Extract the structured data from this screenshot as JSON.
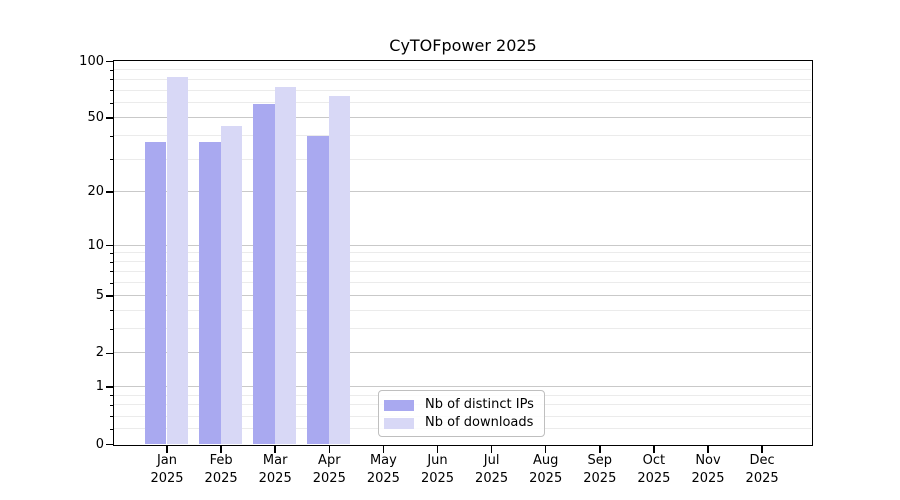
{
  "chart_data": {
    "type": "bar",
    "title": "CyTOFpower 2025",
    "x": {
      "months": [
        "Jan",
        "Feb",
        "Mar",
        "Apr",
        "May",
        "Jun",
        "Jul",
        "Aug",
        "Sep",
        "Oct",
        "Nov",
        "Dec"
      ],
      "year": "2025"
    },
    "categories": [
      "Jan 2025",
      "Feb 2025",
      "Mar 2025",
      "Apr 2025",
      "May 2025",
      "Jun 2025",
      "Jul 2025",
      "Aug 2025",
      "Sep 2025",
      "Oct 2025",
      "Nov 2025",
      "Dec 2025"
    ],
    "series": [
      {
        "name": "Nb of distinct IPs",
        "color": "#a9a9f0",
        "values": [
          37,
          37,
          59,
          40,
          0,
          0,
          0,
          0,
          0,
          0,
          0,
          0
        ]
      },
      {
        "name": "Nb of downloads",
        "color": "#d8d8f6",
        "values": [
          82,
          45,
          73,
          65,
          0,
          0,
          0,
          0,
          0,
          0,
          0,
          0
        ]
      }
    ],
    "y_axis": {
      "scale": "log1p",
      "max": 100,
      "major_ticks": [
        0,
        1,
        2,
        5,
        10,
        20,
        50,
        100
      ],
      "minor_ticks": [
        0.2,
        0.4,
        0.6,
        0.8,
        3,
        4,
        6,
        7,
        8,
        9,
        30,
        40,
        60,
        70,
        80,
        90
      ]
    },
    "grid": "horizontal",
    "legend": {
      "position": "bottom-center"
    }
  },
  "colors": {
    "major_grid": "#c9c9c9",
    "minor_grid": "#ebebeb",
    "axis": "#000000",
    "legend_border": "#bfbfbf"
  }
}
